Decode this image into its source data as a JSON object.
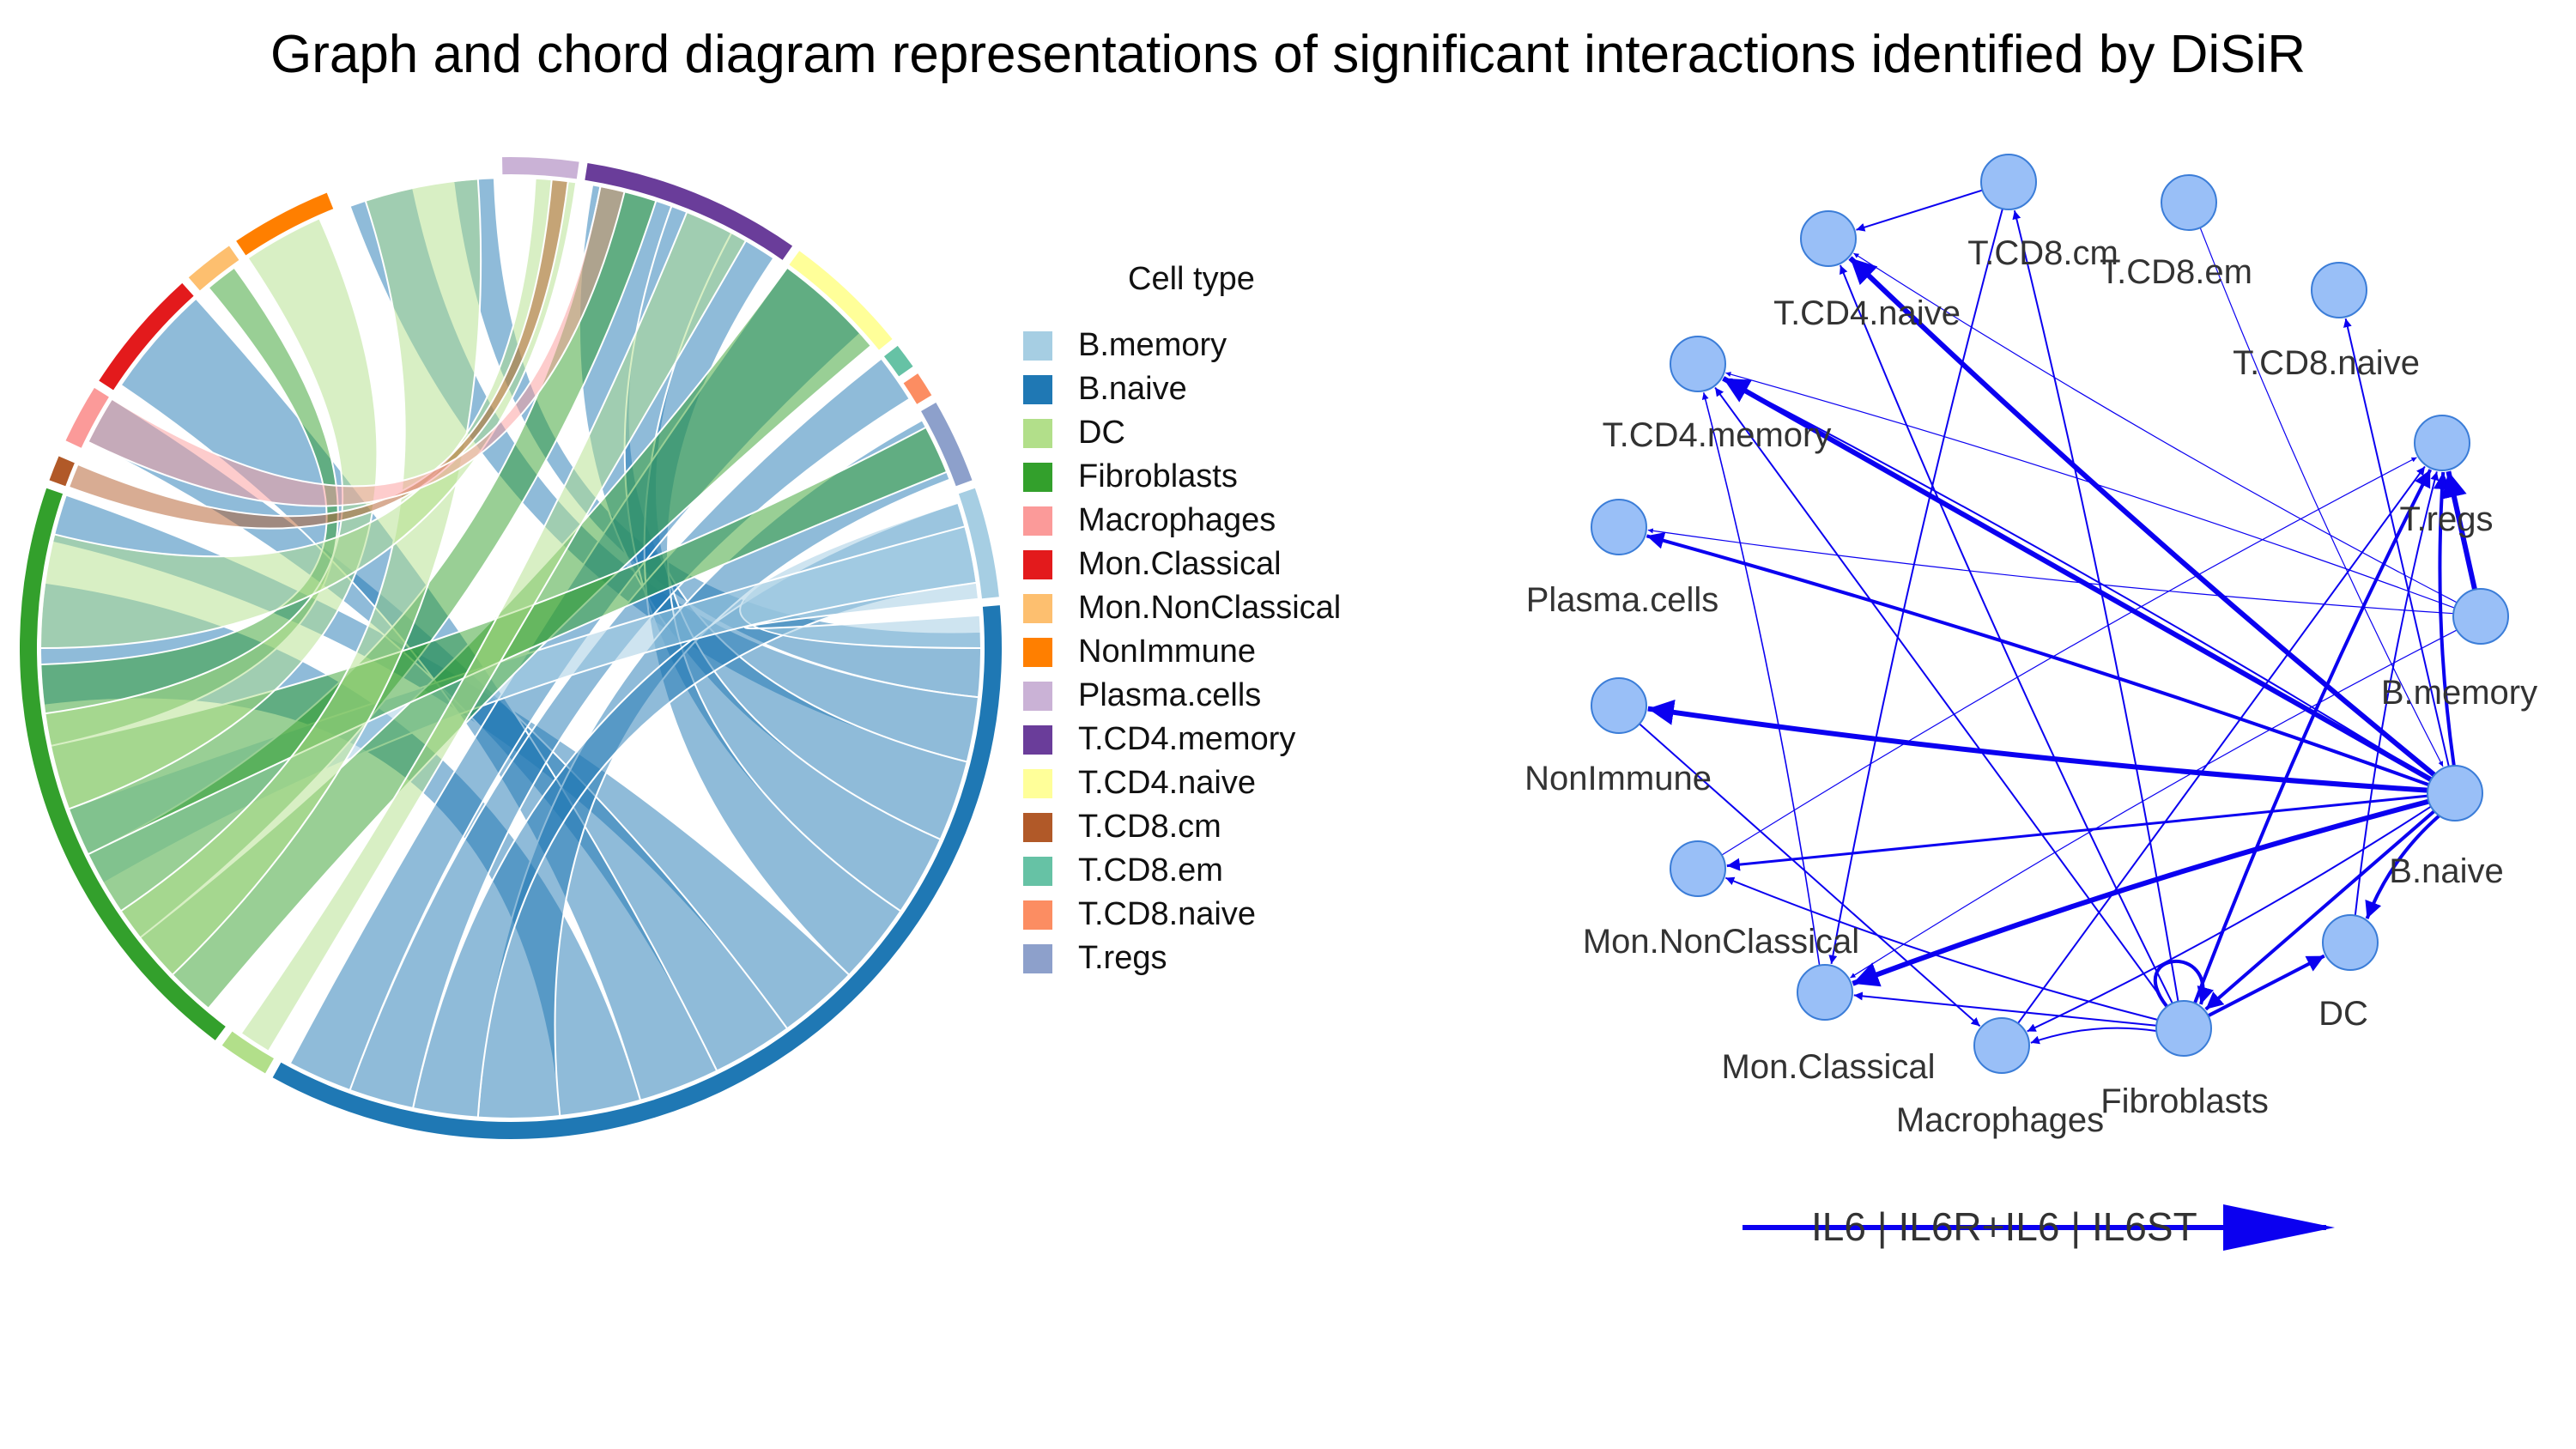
{
  "title": "Graph and chord diagram representations of significant interactions identified by DiSiR",
  "legend": {
    "title": "Cell type",
    "items": [
      {
        "label": "B.memory",
        "color": "#a6cee3"
      },
      {
        "label": "B.naive",
        "color": "#1f78b4"
      },
      {
        "label": "DC",
        "color": "#b2df8a"
      },
      {
        "label": "Fibroblasts",
        "color": "#33a02c"
      },
      {
        "label": "Macrophages",
        "color": "#fb9a99"
      },
      {
        "label": "Mon.Classical",
        "color": "#e31a1c"
      },
      {
        "label": "Mon.NonClassical",
        "color": "#fdbf6f"
      },
      {
        "label": "NonImmune",
        "color": "#ff7f00"
      },
      {
        "label": "Plasma.cells",
        "color": "#cab2d6"
      },
      {
        "label": "T.CD4.memory",
        "color": "#6a3d9a"
      },
      {
        "label": "T.CD4.naive",
        "color": "#ffff99"
      },
      {
        "label": "T.CD8.cm",
        "color": "#b15928"
      },
      {
        "label": "T.CD8.em",
        "color": "#66c2a5"
      },
      {
        "label": "T.CD8.naive",
        "color": "#fc8d62"
      },
      {
        "label": "T.regs",
        "color": "#8da0cb"
      }
    ]
  },
  "graph": {
    "node_color": "#99bff7",
    "node_stroke": "#3b7dd8",
    "edge_color": "#0b00f0",
    "nodes": [
      "T.CD8.cm",
      "T.CD8.em",
      "T.CD8.naive",
      "T.regs",
      "B.memory",
      "B.naive",
      "DC",
      "Fibroblasts",
      "Macrophages",
      "Mon.Classical",
      "Mon.NonClassical",
      "NonImmune",
      "Plasma.cells",
      "T.CD4.memory",
      "T.CD4.naive"
    ],
    "edges": [
      [
        "B.naive",
        "T.CD4.naive",
        3
      ],
      [
        "B.naive",
        "T.CD4.memory",
        3
      ],
      [
        "B.naive",
        "Plasma.cells",
        2
      ],
      [
        "B.naive",
        "NonImmune",
        3
      ],
      [
        "B.naive",
        "Mon.NonClassical",
        1.5
      ],
      [
        "B.naive",
        "Mon.Classical",
        3
      ],
      [
        "B.naive",
        "Macrophages",
        1
      ],
      [
        "B.naive",
        "Fibroblasts",
        2
      ],
      [
        "B.naive",
        "DC",
        2
      ],
      [
        "B.naive",
        "T.regs",
        2
      ],
      [
        "B.naive",
        "T.CD8.naive",
        1
      ],
      [
        "B.naive",
        "T.CD4.memory",
        1
      ],
      [
        "Fibroblasts",
        "T.CD4.naive",
        1
      ],
      [
        "Fibroblasts",
        "T.CD4.memory",
        1
      ],
      [
        "Fibroblasts",
        "T.CD8.cm",
        1
      ],
      [
        "Fibroblasts",
        "T.regs",
        2
      ],
      [
        "Fibroblasts",
        "Mon.Classical",
        1
      ],
      [
        "Fibroblasts",
        "Macrophages",
        1
      ],
      [
        "Fibroblasts",
        "Mon.NonClassical",
        1
      ],
      [
        "Fibroblasts",
        "DC",
        2
      ],
      [
        "B.memory",
        "T.CD4.memory",
        0.6
      ],
      [
        "B.memory",
        "T.CD4.naive",
        0.6
      ],
      [
        "B.memory",
        "T.regs",
        3
      ],
      [
        "B.memory",
        "Mon.Classical",
        0.6
      ],
      [
        "B.memory",
        "Plasma.cells",
        0.6
      ],
      [
        "T.CD8.cm",
        "T.CD4.naive",
        1
      ],
      [
        "T.CD8.cm",
        "Mon.Classical",
        1
      ],
      [
        "DC",
        "T.regs",
        1
      ],
      [
        "Macrophages",
        "T.regs",
        1
      ],
      [
        "Mon.Classical",
        "T.CD4.memory",
        0.8
      ],
      [
        "Mon.NonClassical",
        "T.regs",
        0.6
      ],
      [
        "NonImmune",
        "Macrophages",
        1
      ],
      [
        "T.CD8.em",
        "B.naive",
        0.6
      ],
      [
        "Fibroblasts",
        "Fibroblasts",
        2
      ]
    ],
    "edge_legend_label": "IL6 | IL6R+IL6 | IL6ST"
  }
}
